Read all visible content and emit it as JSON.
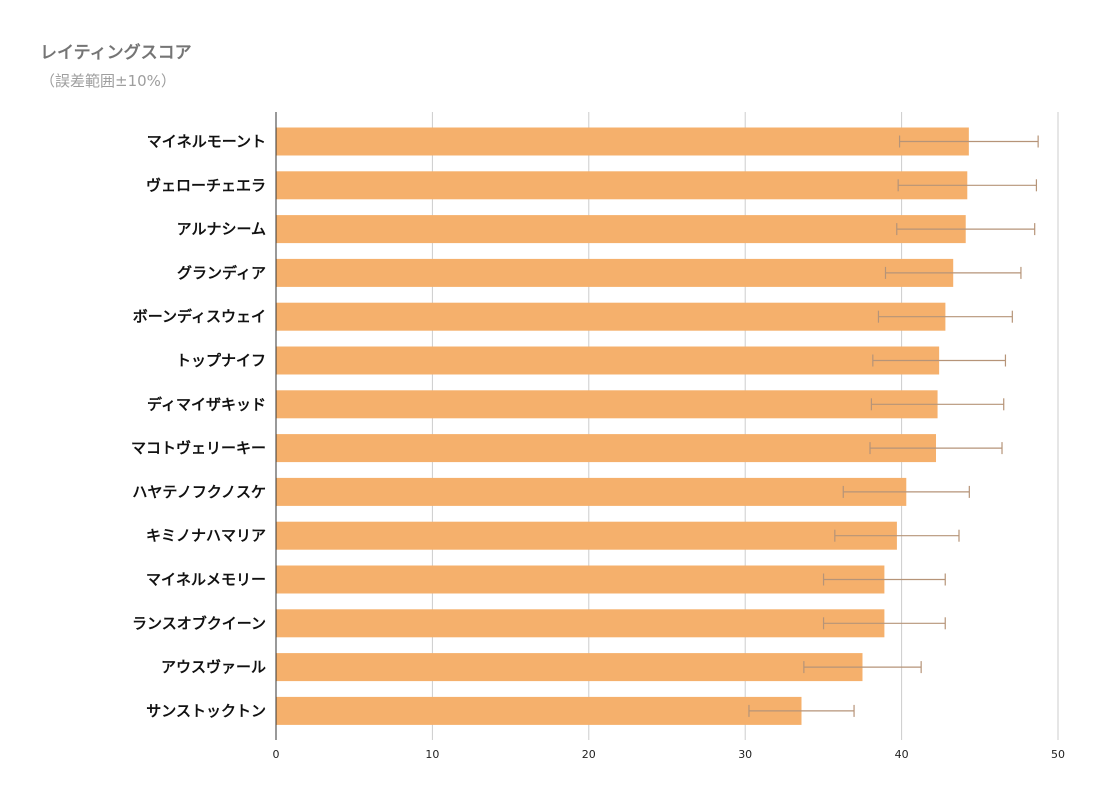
{
  "chart_data": {
    "type": "bar",
    "orientation": "horizontal",
    "title": "レイティングスコア",
    "subtitle": "（誤差範囲±10%）",
    "categories": [
      "マイネルモーント",
      "ヴェローチェエラ",
      "アルナシーム",
      "グランディア",
      "ボーンディスウェイ",
      "トップナイフ",
      "ディマイザキッド",
      "マコトヴェリーキー",
      "ハヤテノフクノスケ",
      "キミノナハマリア",
      "マイネルメモリー",
      "ランスオブクイーン",
      "アウスヴァール",
      "サンストックトン"
    ],
    "values": [
      44.3,
      44.2,
      44.1,
      43.3,
      42.8,
      42.4,
      42.3,
      42.2,
      40.3,
      39.7,
      38.9,
      38.9,
      37.5,
      33.6
    ],
    "error_percent": 10,
    "xlim": [
      0,
      50
    ],
    "xticks": [
      "0",
      "10",
      "20",
      "30",
      "40",
      "50"
    ],
    "xlabel": "",
    "ylabel": "",
    "grid": true,
    "colors": {
      "bar": "#f5b06c",
      "error_bar": "#b69478",
      "grid": "#cccccc",
      "axis": "#333333"
    }
  }
}
